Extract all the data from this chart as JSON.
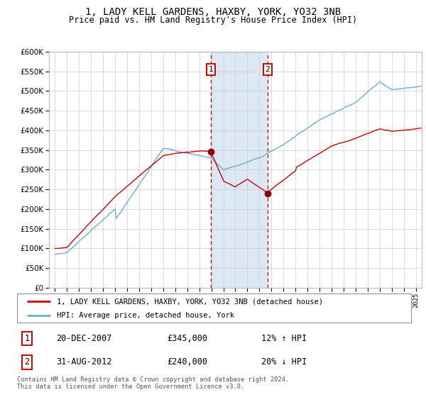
{
  "title": "1, LADY KELL GARDENS, HAXBY, YORK, YO32 3NB",
  "subtitle": "Price paid vs. HM Land Registry's House Price Index (HPI)",
  "legend_line1": "1, LADY KELL GARDENS, HAXBY, YORK, YO32 3NB (detached house)",
  "legend_line2": "HPI: Average price, detached house, York",
  "transaction1_date": "20-DEC-2007",
  "transaction1_price": "£345,000",
  "transaction1_hpi": "12% ↑ HPI",
  "transaction1_year": 2007.97,
  "transaction2_date": "31-AUG-2012",
  "transaction2_price": "£240,000",
  "transaction2_hpi": "20% ↓ HPI",
  "transaction2_year": 2012.67,
  "footnote": "Contains HM Land Registry data © Crown copyright and database right 2024.\nThis data is licensed under the Open Government Licence v3.0.",
  "hpi_color": "#6baed6",
  "price_color": "#cc0000",
  "shade_color": "#dce9f5",
  "marker_color": "#8b0000",
  "grid_color": "#cccccc",
  "background_color": "#ffffff",
  "ylim_min": 0,
  "ylim_max": 600000,
  "xlim_min": 1994.5,
  "xlim_max": 2025.5,
  "t1_price": 345000,
  "t2_price": 240000
}
